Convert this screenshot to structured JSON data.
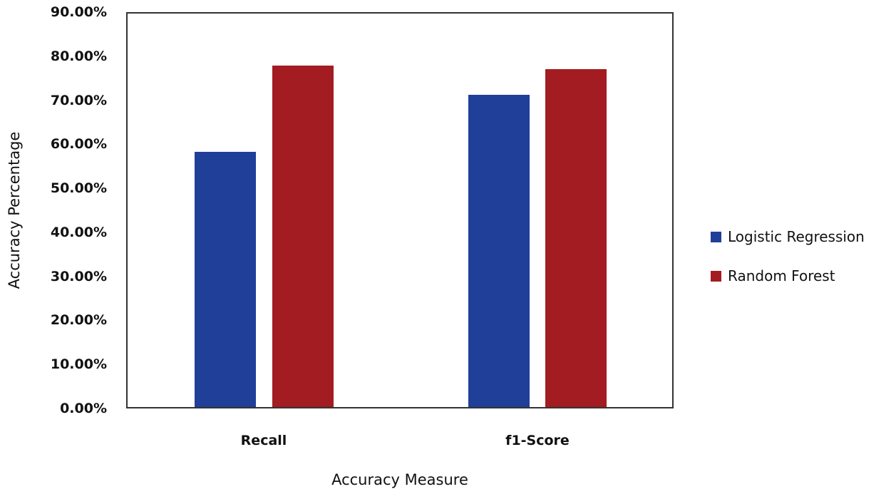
{
  "chart_data": {
    "type": "bar",
    "title": "",
    "xlabel": "Accuracy Measure",
    "ylabel": "Accuracy Percentage",
    "categories": [
      "Recall",
      "f1-Score"
    ],
    "series": [
      {
        "name": "Logistic Regression",
        "color": "#1f3f99",
        "values": [
          58.3,
          71.2
        ]
      },
      {
        "name": "Random Forest",
        "color": "#a31c22",
        "values": [
          77.9,
          77.0
        ]
      }
    ],
    "ylim": [
      0,
      90
    ],
    "yticks": [
      "0.00%",
      "10.00%",
      "20.00%",
      "30.00%",
      "40.00%",
      "50.00%",
      "60.00%",
      "70.00%",
      "80.00%",
      "90.00%"
    ],
    "grid": false,
    "legend_position": "right"
  }
}
